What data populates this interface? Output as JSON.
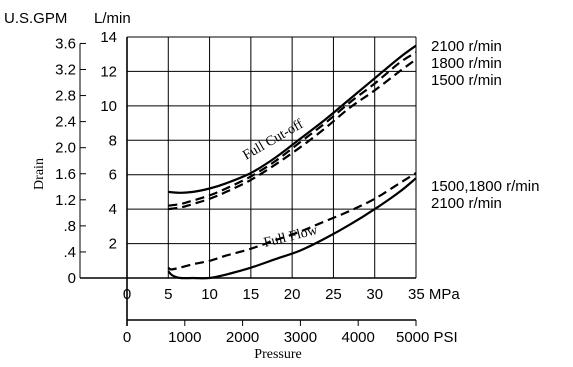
{
  "chart_data": {
    "type": "line",
    "title": "",
    "ylabel": "Drain",
    "xlabel": "Pressure",
    "y_units": {
      "gpm": "U.S.GPM",
      "lpm": "L/min"
    },
    "y_lpm_range": [
      0,
      14
    ],
    "x_mpa_range": [
      0,
      35
    ],
    "x_psi_range": [
      0,
      5000
    ],
    "y_lpm_ticks": [
      "2",
      "4",
      "6",
      "8",
      "10",
      "12",
      "14"
    ],
    "y_gpm_ticks": [
      "0",
      ".4",
      ".8",
      "1.2",
      "1.6",
      "2.0",
      "2.4",
      "2.8",
      "3.2",
      "3.6"
    ],
    "y_gpm_values": [
      0,
      0.4,
      0.8,
      1.2,
      1.6,
      2.0,
      2.4,
      2.8,
      3.2,
      3.6
    ],
    "x_mpa_ticks": [
      "0",
      "5",
      "10",
      "15",
      "20",
      "25",
      "30",
      "35 MPa"
    ],
    "x_mpa_values": [
      0,
      5,
      10,
      15,
      20,
      25,
      30,
      35
    ],
    "x_psi_ticks": [
      "0",
      "1000",
      "2000",
      "3000",
      "4000",
      "5000 PSI"
    ],
    "x_psi_values": [
      0,
      1000,
      2000,
      3000,
      4000,
      5000
    ],
    "grid": true,
    "annotations": {
      "cutoff": "Full Cut-off",
      "flow": "Full Flow"
    },
    "series": [
      {
        "name": "2100 r/min",
        "group": "cutoff",
        "style": "solid",
        "x": [
          5,
          6.5,
          8,
          10,
          12,
          15,
          18,
          21,
          24,
          27,
          30,
          33,
          35
        ],
        "y": [
          5.0,
          4.95,
          5.0,
          5.2,
          5.5,
          6.1,
          7.0,
          8.1,
          9.2,
          10.4,
          11.6,
          12.8,
          13.5
        ]
      },
      {
        "name": "1800 r/min",
        "group": "cutoff",
        "style": "dashed",
        "x": [
          5,
          6.5,
          8,
          10,
          12,
          15,
          18,
          21,
          24,
          27,
          30,
          33,
          35
        ],
        "y": [
          4.2,
          4.3,
          4.5,
          4.8,
          5.2,
          5.9,
          6.8,
          7.9,
          9.0,
          10.2,
          11.3,
          12.5,
          13.1
        ]
      },
      {
        "name": "1500 r/min",
        "group": "cutoff",
        "style": "dashed",
        "x": [
          5,
          6.5,
          8,
          10,
          12,
          15,
          18,
          21,
          24,
          27,
          30,
          33,
          35
        ],
        "y": [
          4.0,
          4.1,
          4.3,
          4.6,
          5.0,
          5.7,
          6.6,
          7.6,
          8.7,
          9.9,
          10.9,
          12.0,
          12.7
        ]
      },
      {
        "name": "1500,1800 r/min",
        "group": "flow",
        "style": "dashed",
        "x": [
          5,
          5.3,
          6,
          8,
          10,
          12,
          15,
          18,
          21,
          24,
          27,
          30,
          33,
          35
        ],
        "y": [
          0.6,
          0.5,
          0.55,
          0.8,
          1.0,
          1.3,
          1.7,
          2.2,
          2.7,
          3.3,
          3.9,
          4.6,
          5.5,
          6.1
        ]
      },
      {
        "name": "2100 r/min",
        "group": "flow",
        "style": "solid",
        "x": [
          5,
          5.5,
          6.5,
          8,
          10,
          12,
          15,
          18,
          21,
          24,
          27,
          30,
          33,
          35
        ],
        "y": [
          0.4,
          0.15,
          0.0,
          0.0,
          0.0,
          0.2,
          0.6,
          1.1,
          1.6,
          2.3,
          3.1,
          4.0,
          5.0,
          5.8
        ]
      }
    ]
  }
}
